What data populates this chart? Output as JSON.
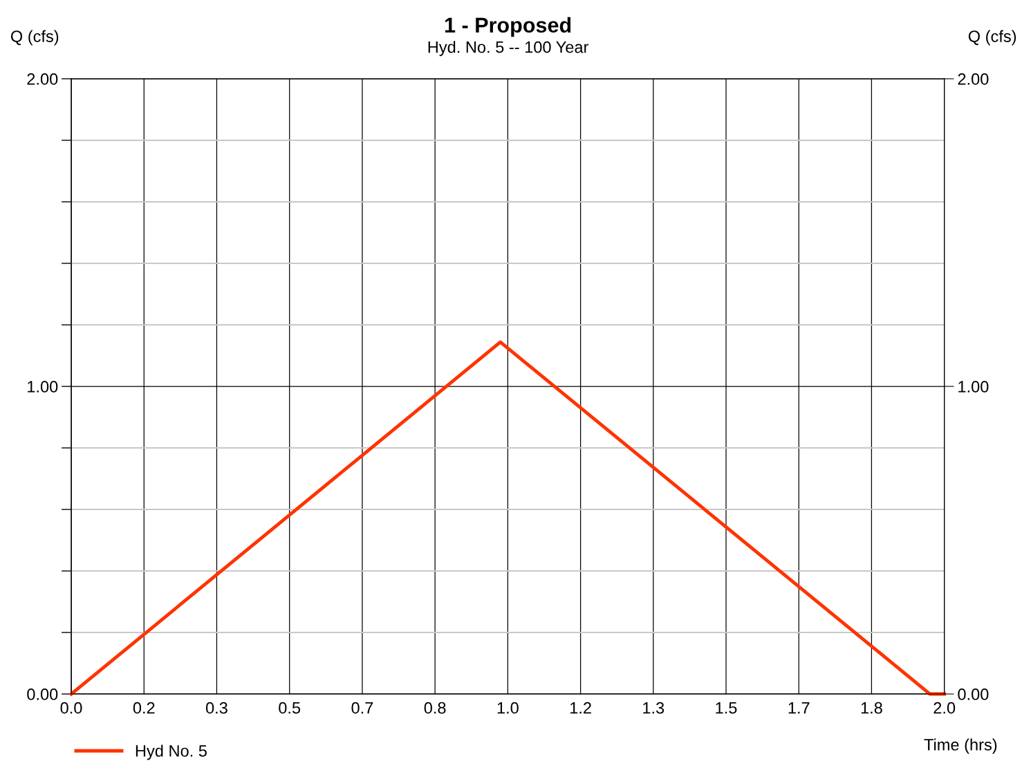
{
  "chart_data": {
    "type": "line",
    "title": "1 - Proposed",
    "subtitle": "Hyd. No. 5 -- 100 Year",
    "xlabel": "Time (hrs)",
    "ylabel": "Q (cfs)",
    "y2label": "Q (cfs)",
    "x": [
      0.0,
      0.983,
      1.967,
      2.0
    ],
    "series": [
      {
        "name": "Hyd No. 5",
        "color": "#ff3300",
        "values": [
          0.0,
          1.144,
          0.0,
          0.0
        ]
      }
    ],
    "xlim": [
      0,
      2.0
    ],
    "xticks": [
      {
        "value": 0,
        "label": "0.0"
      },
      {
        "value": 0.1667,
        "label": "0.2"
      },
      {
        "value": 0.3333,
        "label": "0.3"
      },
      {
        "value": 0.5,
        "label": "0.5"
      },
      {
        "value": 0.6667,
        "label": "0.7"
      },
      {
        "value": 0.8333,
        "label": "0.8"
      },
      {
        "value": 1.0,
        "label": "1.0"
      },
      {
        "value": 1.1667,
        "label": "1.2"
      },
      {
        "value": 1.3333,
        "label": "1.3"
      },
      {
        "value": 1.5,
        "label": "1.5"
      },
      {
        "value": 1.6667,
        "label": "1.7"
      },
      {
        "value": 1.8333,
        "label": "1.8"
      },
      {
        "value": 2.0,
        "label": "2.0"
      }
    ],
    "ylim": [
      0,
      2
    ],
    "yticks": [
      {
        "value": 0,
        "label": "0.00"
      },
      {
        "value": 0.2,
        "label": null
      },
      {
        "value": 0.4,
        "label": null
      },
      {
        "value": 0.6,
        "label": null
      },
      {
        "value": 0.8,
        "label": null
      },
      {
        "value": 1,
        "label": "1.00"
      },
      {
        "value": 1.2,
        "label": null
      },
      {
        "value": 1.4,
        "label": null
      },
      {
        "value": 1.6,
        "label": null
      },
      {
        "value": 1.8,
        "label": null
      },
      {
        "value": 2,
        "label": "2.00"
      }
    ],
    "y2lim": [
      0,
      2
    ],
    "y2ticks": [
      {
        "value": 0,
        "label": "0.00"
      },
      {
        "value": 1,
        "label": "1.00"
      },
      {
        "value": 2,
        "label": "2.00"
      }
    ],
    "grid": true,
    "legend": "bottom left",
    "line_style": "solid",
    "marker": "none"
  }
}
